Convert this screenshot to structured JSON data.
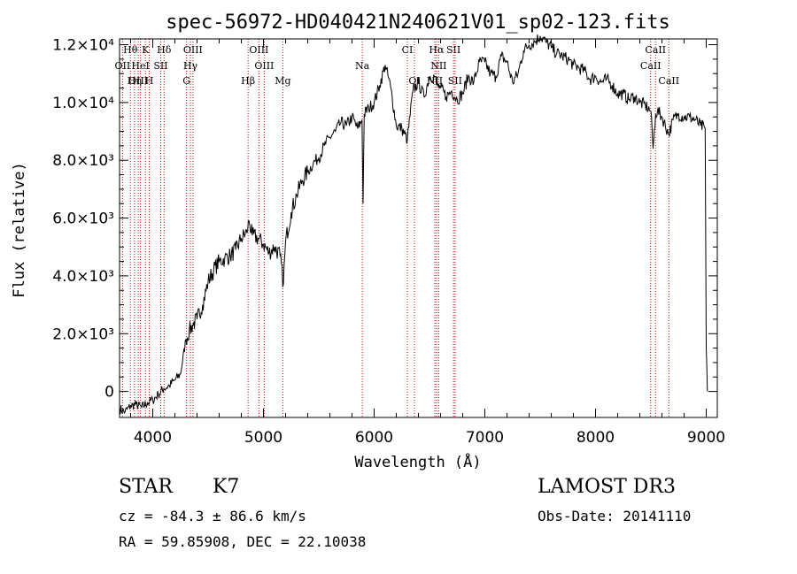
{
  "chart_data": {
    "type": "line",
    "title": "spec-56972-HD040421N240621V01_sp02-123.fits",
    "xlabel": "Wavelength (Å)",
    "ylabel": "Flux (relative)",
    "xlim": [
      3700,
      9100
    ],
    "ylim": [
      -900,
      12200
    ],
    "x_ticks": [
      {
        "value": 4000,
        "label": "4000"
      },
      {
        "value": 5000,
        "label": "5000"
      },
      {
        "value": 6000,
        "label": "6000"
      },
      {
        "value": 7000,
        "label": "7000"
      },
      {
        "value": 8000,
        "label": "8000"
      },
      {
        "value": 9000,
        "label": "9000"
      }
    ],
    "y_ticks": [
      {
        "value": 0,
        "label": "0"
      },
      {
        "value": 2000,
        "label": "2.0×10³"
      },
      {
        "value": 4000,
        "label": "4.0×10³"
      },
      {
        "value": 6000,
        "label": "6.0×10³"
      },
      {
        "value": 8000,
        "label": "8.0×10³"
      },
      {
        "value": 10000,
        "label": "1.0×10⁴"
      },
      {
        "value": 12000,
        "label": "1.2×10⁴"
      }
    ],
    "series_color": "#000000",
    "line_marker_color": "#cc0000",
    "spectrum": {
      "x": [
        3700,
        3750,
        3800,
        3850,
        3900,
        3950,
        4000,
        4050,
        4100,
        4150,
        4200,
        4250,
        4300,
        4330,
        4360,
        4400,
        4450,
        4500,
        4550,
        4600,
        4650,
        4700,
        4750,
        4800,
        4850,
        4870,
        4900,
        4950,
        5000,
        5050,
        5100,
        5150,
        5180,
        5200,
        5250,
        5300,
        5350,
        5400,
        5450,
        5500,
        5550,
        5600,
        5650,
        5700,
        5750,
        5800,
        5850,
        5890,
        5900,
        5910,
        5950,
        6000,
        6050,
        6100,
        6150,
        6200,
        6250,
        6300,
        6350,
        6400,
        6450,
        6500,
        6550,
        6563,
        6600,
        6650,
        6700,
        6750,
        6800,
        6850,
        6900,
        6950,
        7000,
        7050,
        7100,
        7150,
        7200,
        7250,
        7300,
        7350,
        7400,
        7450,
        7500,
        7550,
        7600,
        7650,
        7700,
        7750,
        7800,
        7850,
        7900,
        7950,
        8000,
        8050,
        8100,
        8150,
        8200,
        8250,
        8300,
        8350,
        8400,
        8450,
        8500,
        8520,
        8542,
        8560,
        8600,
        8662,
        8700,
        8750,
        8800,
        8850,
        8900,
        8950,
        8990,
        9000,
        9010
      ],
      "y": [
        -600,
        -700,
        -500,
        -450,
        -550,
        -400,
        -300,
        -100,
        100,
        200,
        400,
        600,
        1800,
        2100,
        2300,
        2500,
        3000,
        3800,
        4200,
        4500,
        4600,
        4700,
        4900,
        5300,
        5500,
        5900,
        5400,
        5300,
        5100,
        4800,
        5000,
        4700,
        3700,
        5200,
        6200,
        6800,
        7300,
        7600,
        7900,
        8100,
        8500,
        8800,
        9000,
        9300,
        9200,
        9500,
        9100,
        9400,
        6500,
        9600,
        9800,
        10000,
        10600,
        11300,
        10500,
        9200,
        9100,
        8700,
        10400,
        10700,
        10200,
        10900,
        10900,
        10600,
        10500,
        10200,
        10400,
        10100,
        10300,
        10900,
        10700,
        11400,
        11400,
        11000,
        10900,
        11600,
        11400,
        10700,
        11000,
        11800,
        12000,
        12100,
        12300,
        12100,
        11900,
        11700,
        11600,
        11500,
        11300,
        11200,
        11100,
        10800,
        10900,
        10700,
        10800,
        10600,
        10300,
        10300,
        10100,
        10200,
        10000,
        9900,
        9700,
        8400,
        9600,
        9700,
        9500,
        8900,
        9400,
        9600,
        9500,
        9500,
        9400,
        9200,
        9100,
        1500,
        0
      ]
    },
    "spectral_lines": [
      {
        "name": "Hθ",
        "wl": 3798,
        "row": 0
      },
      {
        "name": "K",
        "wl": 3934,
        "row": 0
      },
      {
        "name": "Hδ",
        "wl": 4102,
        "row": 0
      },
      {
        "name": "OIII",
        "wl": 4363,
        "row": 0
      },
      {
        "name": "OIII",
        "wl": 4959,
        "row": 0
      },
      {
        "name": "CI",
        "wl": 6300,
        "row": 0
      },
      {
        "name": "Hα",
        "wl": 6563,
        "row": 0
      },
      {
        "name": "SII",
        "wl": 6717,
        "row": 0
      },
      {
        "name": "CaII",
        "wl": 8542,
        "row": 0
      },
      {
        "name": "OII",
        "wl": 3727,
        "row": 1
      },
      {
        "name": "HeI",
        "wl": 3889,
        "row": 1
      },
      {
        "name": "SII",
        "wl": 4072,
        "row": 1
      },
      {
        "name": "Hγ",
        "wl": 4340,
        "row": 1
      },
      {
        "name": "OIII",
        "wl": 5007,
        "row": 1
      },
      {
        "name": "NII",
        "wl": 6583,
        "row": 1
      },
      {
        "name": "CaII",
        "wl": 8498,
        "row": 1
      },
      {
        "name": "OIII",
        "wl": 3869,
        "row": 2
      },
      {
        "name": "Hη",
        "wl": 3835,
        "row": 2
      },
      {
        "name": "H",
        "wl": 3968,
        "row": 2
      },
      {
        "name": "G",
        "wl": 4305,
        "row": 2
      },
      {
        "name": "Hβ",
        "wl": 4861,
        "row": 2
      },
      {
        "name": "Mg",
        "wl": 5175,
        "row": 2
      },
      {
        "name": "Na",
        "wl": 5893,
        "row": 1
      },
      {
        "name": "OI",
        "wl": 6364,
        "row": 2
      },
      {
        "name": "NII",
        "wl": 6548,
        "row": 2
      },
      {
        "name": "SII",
        "wl": 6731,
        "row": 2
      },
      {
        "name": "CaII",
        "wl": 8662,
        "row": 2
      }
    ]
  },
  "footer": {
    "class": "STAR",
    "subclass": "K7",
    "survey": "LAMOST DR3",
    "velocity": "cz = -84.3 ± 86.6 km/s",
    "obs_date": "Obs-Date: 20141110",
    "coords": "RA =  59.85908, DEC =  22.10038"
  }
}
